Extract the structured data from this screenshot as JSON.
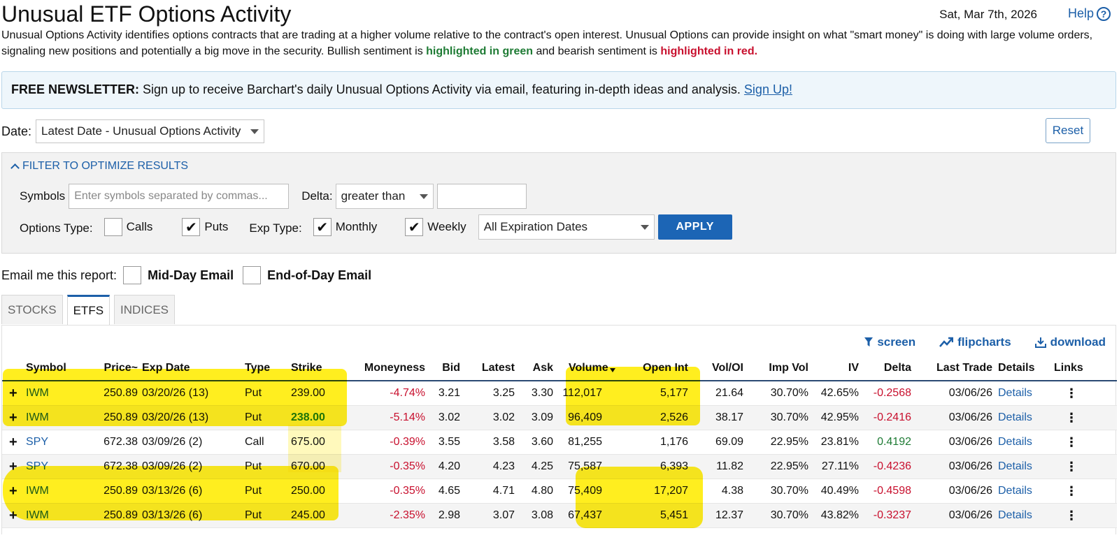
{
  "header": {
    "title": "Unusual ETF Options Activity",
    "date": "Sat, Mar 7th, 2026",
    "help_label": "Help"
  },
  "intro": {
    "text": "Unusual Options Activity identifies options contracts that are trading at a higher volume relative to the contract's open interest. Unusual Options can provide insight on what \"smart money\" is doing with large volume orders, signaling new positions and potentially a big move in the security. Bullish sentiment is",
    "green": "highlighted in green",
    "middle": "and bearish sentiment is",
    "red": "highlighted in red."
  },
  "newsletter": {
    "bold": "FREE NEWSLETTER:",
    "text": "Sign up to receive Barchart's daily Unusual Options Activity via email, featuring in-depth ideas and analysis.",
    "link": "Sign Up!"
  },
  "date_filter": {
    "label": "Date:",
    "selected": "Latest Date - Unusual Options Activity",
    "reset_label": "Reset"
  },
  "filters": {
    "toggle_label": "FILTER TO OPTIMIZE RESULTS",
    "symbols_label": "Symbols",
    "symbols_placeholder": "Enter symbols separated by commas...",
    "delta_label": "Delta:",
    "delta_operator": "greater than",
    "delta_value": "",
    "options_type_label": "Options Type:",
    "calls_label": "Calls",
    "calls_checked": false,
    "puts_label": "Puts",
    "puts_checked": true,
    "exp_type_label": "Exp Type:",
    "monthly_label": "Monthly",
    "monthly_checked": true,
    "weekly_label": "Weekly",
    "weekly_checked": true,
    "expiration_selected": "All Expiration Dates",
    "apply_label": "APPLY"
  },
  "email": {
    "label": "Email me this report:",
    "midday_label": "Mid-Day Email",
    "eod_label": "End-of-Day Email"
  },
  "tabs": [
    {
      "label": "STOCKS",
      "active": false
    },
    {
      "label": "ETFS",
      "active": true
    },
    {
      "label": "INDICES",
      "active": false
    }
  ],
  "toolbar": {
    "screen": "screen",
    "flipcharts": "flipcharts",
    "download": "download"
  },
  "table": {
    "columns": [
      "Symbol",
      "Price~",
      "Exp Date",
      "Type",
      "Strike",
      "Moneyness",
      "Bid",
      "Latest",
      "Ask",
      "Volume",
      "Open Int",
      "Vol/OI",
      "Imp Vol",
      "IV",
      "Delta",
      "Last Trade",
      "Details",
      "Links"
    ],
    "rows": [
      {
        "symbol": "IWM",
        "price": "250.89",
        "exp": "03/20/26 (13)",
        "type": "Put",
        "strike": "239.00",
        "moneyness": "-4.74%",
        "bid": "3.21",
        "latest": "3.25",
        "ask": "3.30",
        "volume": "112,017",
        "oi": "5,177",
        "voloi": "21.64",
        "impvol": "30.70%",
        "iv": "42.65%",
        "delta": "-0.2568",
        "last": "03/06/26",
        "details": "Details",
        "strike_hl": false
      },
      {
        "symbol": "IWM",
        "price": "250.89",
        "exp": "03/20/26 (13)",
        "type": "Put",
        "strike": "238.00",
        "moneyness": "-5.14%",
        "bid": "3.02",
        "latest": "3.02",
        "ask": "3.09",
        "volume": "96,409",
        "oi": "2,526",
        "voloi": "38.17",
        "impvol": "30.70%",
        "iv": "42.95%",
        "delta": "-0.2416",
        "last": "03/06/26",
        "details": "Details",
        "strike_hl": true
      },
      {
        "symbol": "SPY",
        "price": "672.38",
        "exp": "03/09/26 (2)",
        "type": "Call",
        "strike": "675.00",
        "moneyness": "-0.39%",
        "bid": "3.55",
        "latest": "3.58",
        "ask": "3.60",
        "volume": "81,255",
        "oi": "1,176",
        "voloi": "69.09",
        "impvol": "22.95%",
        "iv": "23.81%",
        "delta": "0.4192",
        "last": "03/06/26",
        "details": "Details",
        "strike_hl": false
      },
      {
        "symbol": "SPY",
        "price": "672.38",
        "exp": "03/09/26 (2)",
        "type": "Put",
        "strike": "670.00",
        "moneyness": "-0.35%",
        "bid": "4.20",
        "latest": "4.23",
        "ask": "4.25",
        "volume": "75,587",
        "oi": "6,393",
        "voloi": "11.82",
        "impvol": "22.95%",
        "iv": "27.11%",
        "delta": "-0.4236",
        "last": "03/06/26",
        "details": "Details",
        "strike_hl": false
      },
      {
        "symbol": "IWM",
        "price": "250.89",
        "exp": "03/13/26 (6)",
        "type": "Put",
        "strike": "250.00",
        "moneyness": "-0.35%",
        "bid": "4.65",
        "latest": "4.71",
        "ask": "4.80",
        "volume": "75,409",
        "oi": "17,207",
        "voloi": "4.38",
        "impvol": "30.70%",
        "iv": "40.49%",
        "delta": "-0.4598",
        "last": "03/06/26",
        "details": "Details",
        "strike_hl": false
      },
      {
        "symbol": "IWM",
        "price": "250.89",
        "exp": "03/13/26 (6)",
        "type": "Put",
        "strike": "245.00",
        "moneyness": "-2.35%",
        "bid": "2.98",
        "latest": "3.07",
        "ask": "3.08",
        "volume": "67,437",
        "oi": "5,451",
        "voloi": "12.37",
        "impvol": "30.70%",
        "iv": "43.82%",
        "delta": "-0.3237",
        "last": "03/06/26",
        "details": "Details",
        "strike_hl": false
      }
    ]
  },
  "colors": {
    "link": "#1c5fa8",
    "bullish": "#1e7b34",
    "bearish": "#c8102e",
    "highlighter": "#ffec00"
  }
}
